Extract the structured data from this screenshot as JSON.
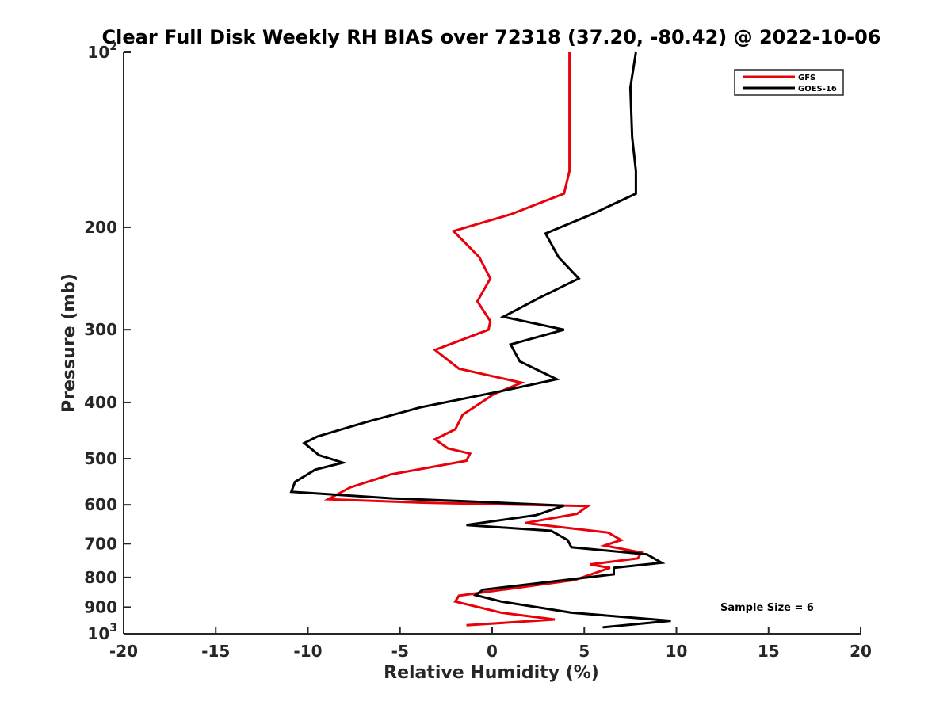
{
  "chart_data": {
    "type": "line",
    "title": "Clear Full Disk Weekly RH BIAS over 72318 (37.20, -80.42) @ 2022-10-06",
    "xlabel": "Relative Humidity (%)",
    "ylabel": "Pressure (mb)",
    "xlim": [
      -20,
      20
    ],
    "ylim": [
      100,
      1000
    ],
    "yscale": "log",
    "y_reversed": true,
    "grid": false,
    "legend_position": "top-right",
    "x_ticks": [
      "-20",
      "-15",
      "-10",
      "-5",
      "0",
      "5",
      "10",
      "15",
      "20"
    ],
    "y_ticks": [
      {
        "base": "10",
        "exp": "2"
      },
      {
        "label": "200"
      },
      {
        "label": "300"
      },
      {
        "label": "400"
      },
      {
        "label": "500"
      },
      {
        "label": "600"
      },
      {
        "label": "700"
      },
      {
        "label": "800"
      },
      {
        "label": "900"
      },
      {
        "base": "10",
        "exp": "3"
      }
    ],
    "annotation": "Sample Size = 6",
    "series": [
      {
        "name": "GFS",
        "color": "#e8000b",
        "points": [
          [
            4.2,
            100
          ],
          [
            4.2,
            115
          ],
          [
            4.2,
            140
          ],
          [
            4.2,
            160
          ],
          [
            3.9,
            175
          ],
          [
            1.0,
            190
          ],
          [
            -2.1,
            203
          ],
          [
            -0.7,
            225
          ],
          [
            -0.1,
            245
          ],
          [
            -0.8,
            268
          ],
          [
            -0.1,
            290
          ],
          [
            -0.2,
            300
          ],
          [
            -3.1,
            325
          ],
          [
            -1.8,
            350
          ],
          [
            1.6,
            370
          ],
          [
            0.1,
            387
          ],
          [
            -1.6,
            420
          ],
          [
            -2.0,
            445
          ],
          [
            -3.1,
            463
          ],
          [
            -2.4,
            480
          ],
          [
            -1.2,
            490
          ],
          [
            -1.4,
            504
          ],
          [
            -5.5,
            532
          ],
          [
            -7.7,
            560
          ],
          [
            -8.9,
            587
          ],
          [
            -3.8,
            595
          ],
          [
            5.2,
            603
          ],
          [
            4.6,
            622
          ],
          [
            1.8,
            645
          ],
          [
            6.3,
            670
          ],
          [
            7.0,
            690
          ],
          [
            6.1,
            705
          ],
          [
            8.1,
            725
          ],
          [
            7.9,
            742
          ],
          [
            5.3,
            760
          ],
          [
            6.4,
            770
          ],
          [
            4.5,
            808
          ],
          [
            -1.8,
            860
          ],
          [
            -2.0,
            880
          ],
          [
            0.5,
            920
          ],
          [
            3.4,
            945
          ],
          [
            -1.4,
            967
          ]
        ]
      },
      {
        "name": "GOES-16",
        "color": "#000000",
        "points": [
          [
            7.8,
            100
          ],
          [
            7.5,
            115
          ],
          [
            7.6,
            140
          ],
          [
            7.8,
            160
          ],
          [
            7.8,
            175
          ],
          [
            5.4,
            190
          ],
          [
            2.9,
            205
          ],
          [
            3.6,
            225
          ],
          [
            4.7,
            245
          ],
          [
            2.5,
            265
          ],
          [
            0.6,
            285
          ],
          [
            3.9,
            300
          ],
          [
            1.0,
            318
          ],
          [
            1.5,
            340
          ],
          [
            3.5,
            365
          ],
          [
            0.6,
            382
          ],
          [
            -3.9,
            408
          ],
          [
            -6.9,
            433
          ],
          [
            -9.5,
            458
          ],
          [
            -10.2,
            470
          ],
          [
            -9.4,
            493
          ],
          [
            -8.1,
            508
          ],
          [
            -9.6,
            522
          ],
          [
            -10.7,
            548
          ],
          [
            -10.9,
            570
          ],
          [
            -5.4,
            585
          ],
          [
            -1.3,
            592
          ],
          [
            3.9,
            602
          ],
          [
            2.4,
            625
          ],
          [
            -1.4,
            650
          ],
          [
            3.2,
            665
          ],
          [
            4.1,
            690
          ],
          [
            4.3,
            710
          ],
          [
            8.4,
            730
          ],
          [
            9.2,
            755
          ],
          [
            6.6,
            770
          ],
          [
            6.6,
            790
          ],
          [
            -0.5,
            840
          ],
          [
            -0.9,
            858
          ],
          [
            0.5,
            880
          ],
          [
            4.3,
            920
          ],
          [
            9.7,
            950
          ],
          [
            6.0,
            975
          ]
        ]
      }
    ]
  }
}
